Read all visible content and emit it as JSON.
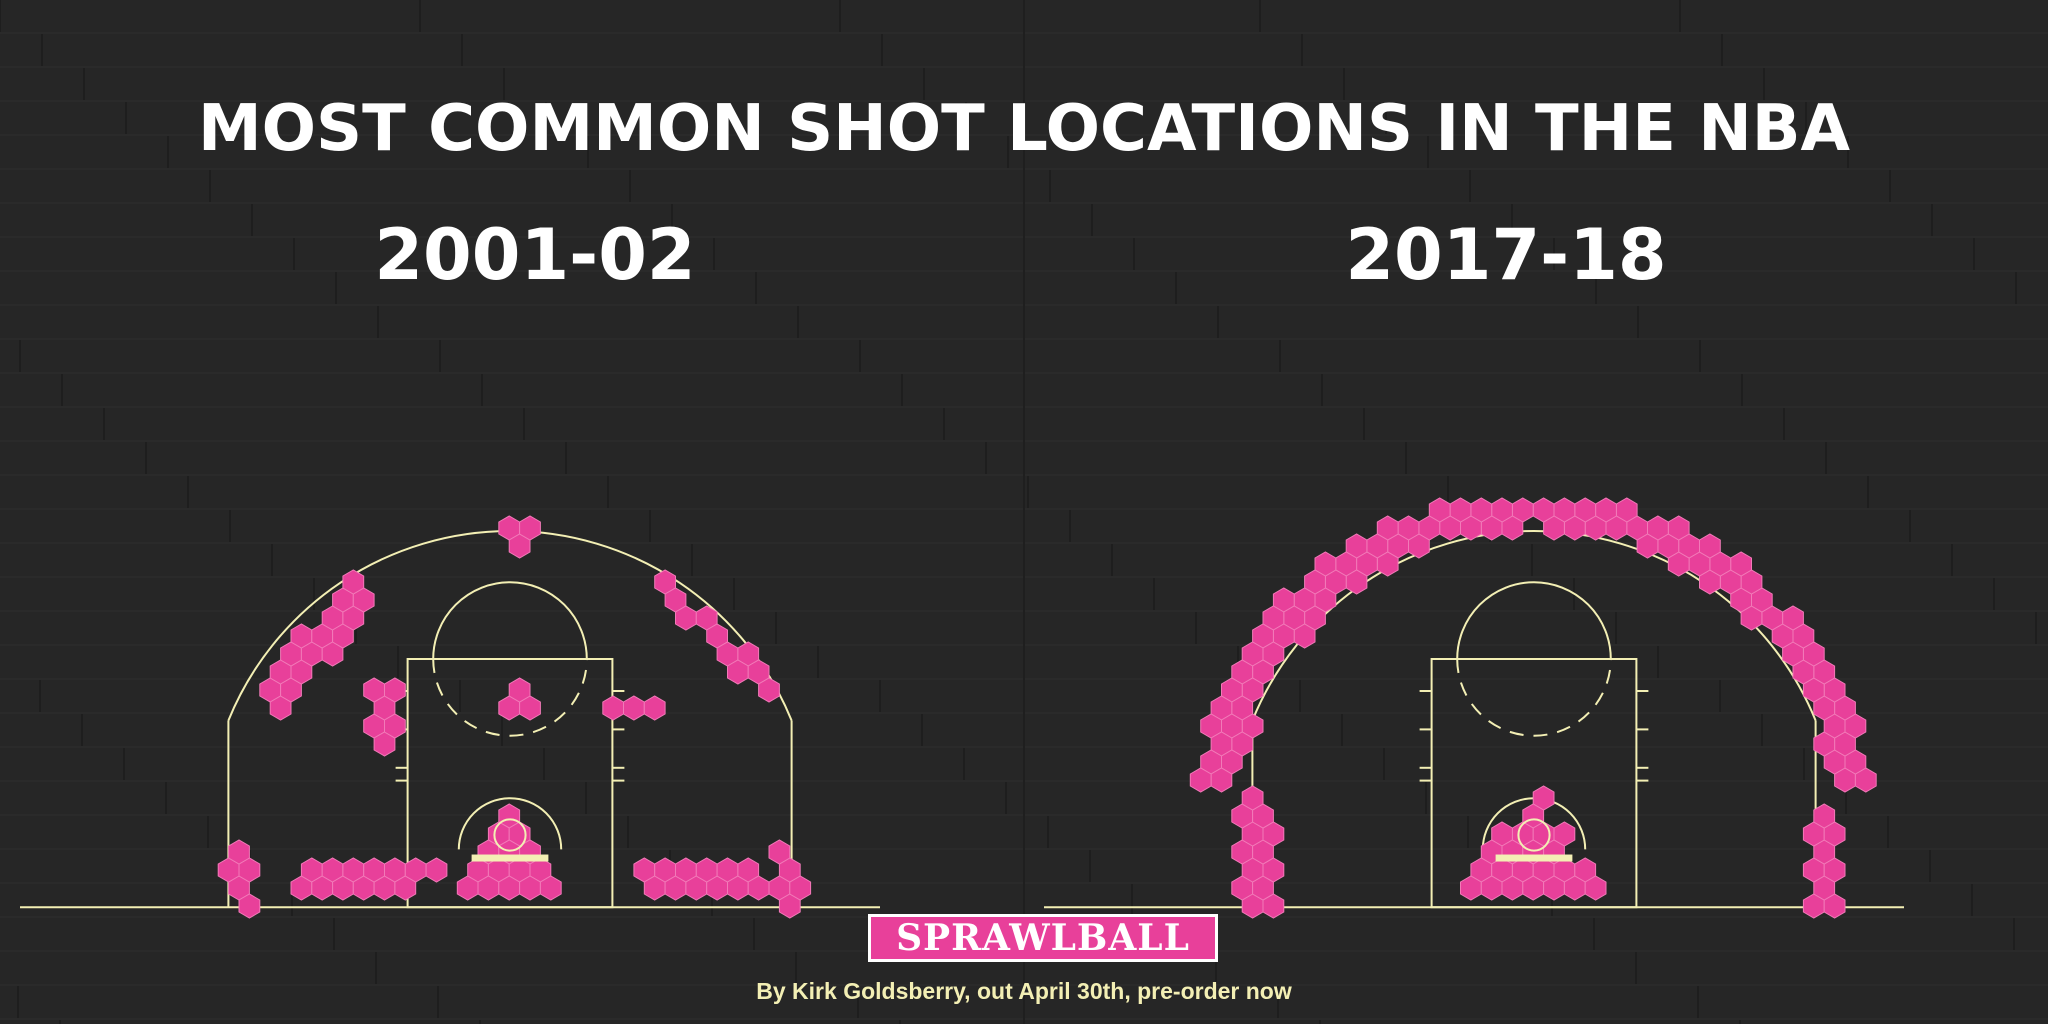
{
  "title": "MOST COMMON SHOT LOCATIONS IN THE NBA",
  "panels": [
    {
      "season": "2001-02",
      "clusters": [
        {
          "name": "paint",
          "shape": "triangle",
          "apex": [
            0,
            1.5
          ],
          "base": [
            -3.2,
            3.2
          ],
          "baseline": -4.6
        },
        {
          "name": "corner-left",
          "line": [
            [
              -21.5,
              -4.5
            ],
            [
              -21.5,
              -1.5
            ]
          ]
        },
        {
          "name": "corner-right",
          "line": [
            [
              21.5,
              -4.5
            ],
            [
              21.5,
              -1.5
            ]
          ]
        },
        {
          "name": "baseline-left",
          "line": [
            [
              -17,
              -3.5
            ],
            [
              -7,
              -2.5
            ]
          ]
        },
        {
          "name": "baseline-right",
          "line": [
            [
              10,
              -3
            ],
            [
              18,
              -3
            ]
          ]
        },
        {
          "name": "wing-arc-left",
          "line": [
            [
              -19.5,
              11
            ],
            [
              -12,
              19.5
            ]
          ]
        },
        {
          "name": "wing-arc-right",
          "line": [
            [
              12,
              19.5
            ],
            [
              20,
              11.5
            ]
          ]
        },
        {
          "name": "top-arc",
          "line": [
            [
              0,
              23.5
            ],
            [
              0,
              24.5
            ]
          ]
        },
        {
          "name": "elbow-left",
          "line": [
            [
              -11,
              8
            ],
            [
              -10,
              12
            ]
          ]
        },
        {
          "name": "elbow-right",
          "line": [
            [
              8,
              10.5
            ],
            [
              11,
              10
            ]
          ]
        },
        {
          "name": "free-throw",
          "line": [
            [
              0,
              10.5
            ],
            [
              0,
              12
            ]
          ]
        }
      ]
    },
    {
      "season": "2017-18",
      "clusters": [
        {
          "name": "paint",
          "shape": "triangle",
          "apex": [
            0,
            2.5
          ],
          "base": [
            -5.2,
            5.2
          ],
          "baseline": -4.6
        },
        {
          "name": "corner-left",
          "line": [
            [
              -22,
              -5
            ],
            [
              -22,
              2.5
            ]
          ]
        },
        {
          "name": "corner-right",
          "line": [
            [
              22,
              -5
            ],
            [
              22,
              2
            ]
          ]
        },
        {
          "name": "three-arc",
          "arc": {
            "radius": 24.4,
            "from": 10,
            "to": 170
          }
        }
      ]
    }
  ],
  "logo": "SPRAWLBALL",
  "credit": "By Kirk Goldsberry, out April 30th, pre-order now",
  "colors": {
    "background": "#2b2b2b",
    "hex_fill": "#e8409a",
    "hex_stroke": "#f27ab8",
    "court_line": "#f3efb4",
    "text": "#ffffff",
    "credit_text": "#f3efb4"
  }
}
